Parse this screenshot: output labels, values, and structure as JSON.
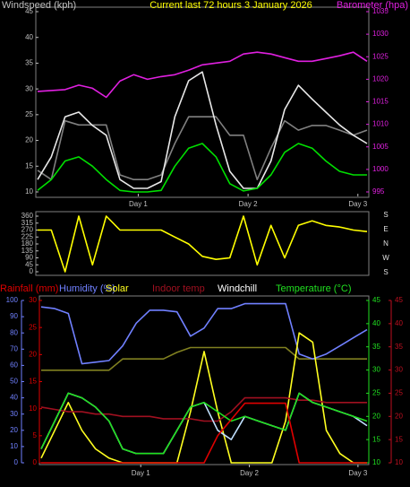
{
  "chart_data": [
    {
      "type": "line",
      "title": "Current last 72 hours 3 January 2026",
      "x": [
        0,
        3,
        6,
        9,
        12,
        15,
        18,
        21,
        24,
        27,
        30,
        33,
        36,
        39,
        42,
        45,
        48,
        51,
        54,
        57,
        60,
        63,
        66,
        69,
        72
      ],
      "xlim": [
        0,
        72
      ],
      "xticks": [
        {
          "value": 22,
          "label": "Day 1"
        },
        {
          "value": 46,
          "label": "Day 2"
        },
        {
          "value": 70,
          "label": "Day 3"
        }
      ],
      "axes": [
        {
          "label": "Windspeed (kph)",
          "color": "#c0c0c0",
          "lim": [
            10,
            45
          ],
          "ticks": [
            10,
            15,
            20,
            25,
            30,
            35,
            40,
            45
          ]
        },
        {
          "label": "Barometer (hpa)",
          "color": "#e020e0",
          "lim": [
            995,
            1035
          ],
          "ticks": [
            995,
            1000,
            1005,
            1010,
            1015,
            1020,
            1025,
            1030,
            1035
          ]
        }
      ],
      "series": [
        {
          "color": "#808080",
          "axis": 0,
          "values": [
            14.2,
            12.4,
            23.8,
            23,
            23,
            23,
            13.3,
            12.4,
            12.4,
            13.3,
            19.4,
            24.6,
            24.6,
            24.6,
            21,
            21,
            12.4,
            18.5,
            23.8,
            22,
            22.9,
            22.9,
            22,
            21,
            22
          ]
        },
        {
          "color": "#e8e8e8",
          "axis": 0,
          "values": [
            12.4,
            16.8,
            24.6,
            25.5,
            22.9,
            21,
            12.4,
            10.7,
            10.7,
            12,
            24.6,
            31.6,
            33.3,
            23,
            14,
            10.7,
            10.7,
            16,
            26,
            30.7,
            28,
            25.5,
            23,
            21,
            19.4
          ]
        },
        {
          "color": "#00e000",
          "axis": 0,
          "values": [
            10.3,
            12.4,
            16,
            16.8,
            15,
            12.4,
            10.3,
            10,
            10,
            10.3,
            15,
            18.5,
            19.4,
            16.8,
            11.6,
            10.2,
            10.7,
            13.3,
            17.7,
            19.4,
            18.5,
            16,
            14,
            13.3,
            13.3
          ]
        },
        {
          "color": "#e020e0",
          "axis": 1,
          "values": [
            1017.3,
            1017.5,
            1017.7,
            1018.7,
            1018,
            1016,
            1019.6,
            1021,
            1020,
            1020.6,
            1021,
            1022,
            1023.2,
            1023.6,
            1024,
            1025.6,
            1026,
            1025.6,
            1024.8,
            1024,
            1024,
            1024.6,
            1025.2,
            1026,
            1024
          ]
        }
      ]
    },
    {
      "type": "line",
      "x": [
        0,
        3,
        6,
        9,
        12,
        15,
        18,
        21,
        24,
        27,
        30,
        33,
        36,
        39,
        42,
        45,
        48,
        51,
        54,
        57,
        60,
        63,
        66,
        69,
        72
      ],
      "xlim": [
        0,
        72
      ],
      "axes": [
        {
          "color": "#c0c0c0",
          "lim": [
            0,
            360
          ],
          "ticks": [
            0,
            45,
            90,
            135,
            180,
            225,
            270,
            315,
            360
          ]
        }
      ],
      "direction_labels": [
        "S",
        "E",
        "N",
        "W",
        "S"
      ],
      "series": [
        {
          "color": "#ffff00",
          "axis": 0,
          "values": [
            270,
            270,
            0,
            360,
            45,
            360,
            270,
            270,
            270,
            270,
            225,
            180,
            100,
            80,
            90,
            360,
            45,
            300,
            90,
            300,
            330,
            300,
            290,
            270,
            260
          ]
        }
      ]
    },
    {
      "type": "line",
      "x": [
        0,
        3,
        6,
        9,
        12,
        15,
        18,
        21,
        24,
        27,
        30,
        33,
        36,
        39,
        42,
        45,
        48,
        51,
        54,
        57,
        60,
        63,
        66,
        69,
        72
      ],
      "xlim": [
        0,
        72
      ],
      "xticks": [
        {
          "value": 22,
          "label": "Day 1"
        },
        {
          "value": 46,
          "label": "Day 2"
        },
        {
          "value": 70,
          "label": "Day 3"
        }
      ],
      "axes": [
        {
          "label": "Rainfall (mm)",
          "color": "#e00000",
          "lim": [
            0,
            30
          ],
          "ticks": [
            0,
            5,
            10,
            15,
            20,
            25,
            30
          ]
        },
        {
          "label": "Humidity (%)",
          "color": "#7080ff",
          "lim": [
            0,
            100
          ],
          "ticks": [
            0,
            10,
            20,
            30,
            40,
            50,
            60,
            70,
            80,
            90,
            100
          ]
        },
        {
          "label": "Temperature (°C)",
          "color": "#20e020",
          "lim": [
            10,
            45
          ],
          "ticks": [
            10,
            15,
            20,
            25,
            30,
            35,
            40,
            45
          ]
        },
        {
          "color": "#c01020",
          "lim": [
            10,
            45
          ],
          "ticks": [
            10,
            15,
            20,
            25,
            30,
            35,
            40,
            45
          ]
        }
      ],
      "series": [
        {
          "color": "#808020",
          "axis": 1,
          "values": [
            57,
            57,
            57,
            57,
            57,
            57,
            64,
            64,
            64,
            64,
            68,
            71,
            71,
            71,
            71,
            71,
            71,
            71,
            71,
            64,
            64,
            64,
            64,
            64,
            64
          ]
        },
        {
          "color": "#7080ff",
          "axis": 1,
          "values": [
            96,
            95,
            92,
            61,
            62,
            63,
            72,
            86,
            94,
            94,
            93,
            78,
            83,
            95,
            95,
            98,
            98,
            98,
            98,
            67,
            64,
            67,
            72,
            77,
            82
          ]
        },
        {
          "name": "Solar",
          "color": "#ffff20",
          "axis": 2,
          "values": [
            11,
            17,
            23,
            17,
            13,
            11,
            10,
            10,
            10,
            10,
            10,
            21,
            34,
            21,
            10,
            10,
            10,
            10,
            19,
            38,
            36,
            17,
            12,
            10,
            10
          ]
        },
        {
          "name": "Indoor temp",
          "color": "#a01020",
          "axis": 3,
          "values": [
            22,
            21.5,
            21,
            21,
            20.5,
            20.5,
            20,
            20,
            20,
            19.5,
            19.5,
            19.5,
            19,
            19,
            21,
            24,
            24,
            24,
            24,
            23.5,
            23.5,
            23,
            23,
            23,
            23
          ]
        },
        {
          "name": "Windchill",
          "color": "#c0e0ff",
          "axis": 2,
          "values": [
            13,
            19,
            25,
            24,
            22,
            19,
            13,
            12,
            12,
            12,
            17,
            22,
            23,
            17,
            15,
            20,
            19,
            18,
            17,
            25,
            23,
            22,
            21,
            20,
            18
          ]
        },
        {
          "color": "#20e020",
          "axis": 2,
          "values": [
            13,
            19,
            25,
            24,
            22,
            19,
            13,
            12,
            12,
            12,
            17,
            22,
            23,
            21,
            19,
            20,
            19,
            18,
            17,
            25,
            23,
            22,
            21,
            20,
            19
          ]
        },
        {
          "color": "#e00000",
          "axis": 0,
          "values": [
            0,
            0,
            0,
            0,
            0,
            0,
            0,
            0,
            0,
            0,
            0,
            0,
            0,
            5,
            8,
            11,
            11,
            11,
            11,
            0,
            0,
            0,
            0,
            0,
            0
          ]
        }
      ]
    }
  ]
}
